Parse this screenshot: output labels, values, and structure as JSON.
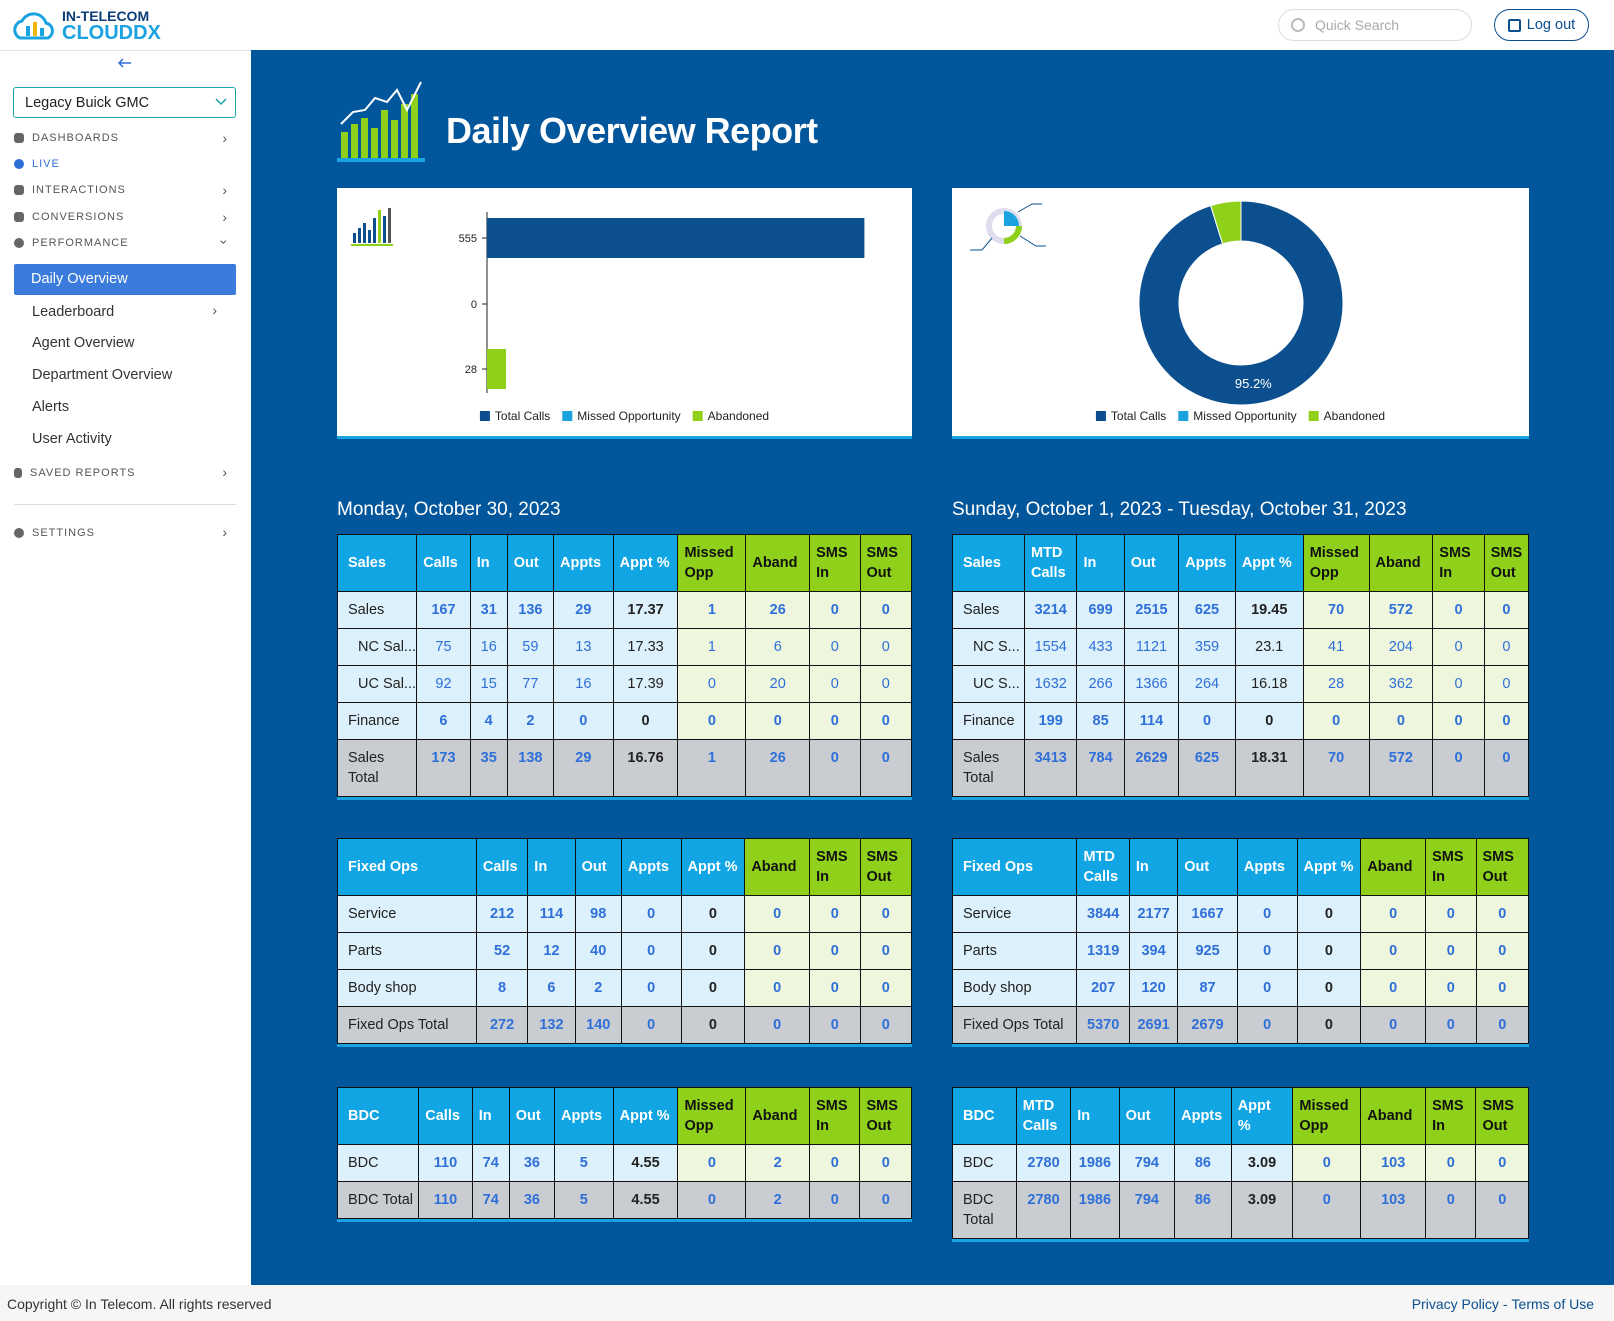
{
  "header": {
    "logo_top": "IN-TELECOM",
    "logo_bottom": "CLOUDDX",
    "search_placeholder": "Quick Search",
    "logout": "Log out"
  },
  "sidebar": {
    "dealer": "Legacy Buick GMC",
    "nav": [
      "DASHBOARDS",
      "LIVE",
      "INTERACTIONS",
      "CONVERSIONS",
      "PERFORMANCE"
    ],
    "performance_items": [
      "Daily Overview",
      "Leaderboard",
      "Agent Overview",
      "Department Overview",
      "Alerts",
      "User Activity"
    ],
    "saved_reports": "SAVED REPORTS",
    "settings": "SETTINGS"
  },
  "report": {
    "title": "Daily Overview Report"
  },
  "bar_chart": {
    "type": "bar",
    "horizontal": true,
    "xlim": [
      0,
      600
    ],
    "series": [
      {
        "name": "Total Calls",
        "color": "#0b4f8f",
        "values": [
          555
        ]
      },
      {
        "name": "Missed Opportunity",
        "color": "#1aa3e0",
        "values": [
          0
        ]
      },
      {
        "name": "Abandoned",
        "color": "#8fd11a",
        "values": [
          28
        ]
      }
    ]
  },
  "donut_chart": {
    "type": "pie",
    "donut": true,
    "categories": [
      "Total Calls",
      "Missed Opportunity",
      "Abandoned"
    ],
    "colors": [
      "#0b4f8f",
      "#1aa3e0",
      "#8fd11a"
    ],
    "values": [
      95.2,
      0,
      4.8
    ],
    "value_labels": [
      "95.2%",
      null,
      null
    ]
  },
  "sections": [
    {
      "title": "Monday, October 30, 2023",
      "tables": [
        {
          "columns": [
            "Sales",
            "Calls",
            "In",
            "Out",
            "Appts",
            "Appt %",
            "Missed Opp",
            "Aband",
            "SMS In",
            "SMS Out"
          ],
          "rows": [
            [
              "Sales",
              167,
              31,
              136,
              29,
              17.37,
              1,
              26,
              0,
              0
            ],
            [
              "NC Sal...",
              75,
              16,
              59,
              13,
              17.33,
              1,
              6,
              0,
              0
            ],
            [
              "UC Sal...",
              92,
              15,
              77,
              16,
              17.39,
              0,
              20,
              0,
              0
            ],
            [
              "Finance",
              6,
              4,
              2,
              0,
              0,
              0,
              0,
              0,
              0
            ],
            [
              "Sales Total",
              173,
              35,
              138,
              29,
              16.76,
              1,
              26,
              0,
              0
            ]
          ]
        },
        {
          "columns": [
            "Fixed Ops",
            "Calls",
            "In",
            "Out",
            "Appts",
            "Appt %",
            "Aband",
            "SMS In",
            "SMS Out"
          ],
          "rows": [
            [
              "Service",
              212,
              114,
              98,
              0,
              0,
              0,
              0,
              0
            ],
            [
              "Parts",
              52,
              12,
              40,
              0,
              0,
              0,
              0,
              0
            ],
            [
              "Body shop",
              8,
              6,
              2,
              0,
              0,
              0,
              0,
              0
            ],
            [
              "Fixed Ops Total",
              272,
              132,
              140,
              0,
              0,
              0,
              0,
              0
            ]
          ]
        },
        {
          "columns": [
            "BDC",
            "Calls",
            "In",
            "Out",
            "Appts",
            "Appt %",
            "Missed Opp",
            "Aband",
            "SMS In",
            "SMS Out"
          ],
          "rows": [
            [
              "BDC",
              110,
              74,
              36,
              5,
              4.55,
              0,
              2,
              0,
              0
            ],
            [
              "BDC Total",
              110,
              74,
              36,
              5,
              4.55,
              0,
              2,
              0,
              0
            ]
          ]
        }
      ]
    },
    {
      "title": "Sunday, October 1, 2023 - Tuesday, October 31, 2023",
      "tables": [
        {
          "columns": [
            "Sales",
            "MTD Calls",
            "In",
            "Out",
            "Appts",
            "Appt %",
            "Missed Opp",
            "Aband",
            "SMS In",
            "SMS Out"
          ],
          "rows": [
            [
              "Sales",
              3214,
              699,
              2515,
              625,
              19.45,
              70,
              572,
              0,
              0
            ],
            [
              "NC S...",
              1554,
              433,
              1121,
              359,
              23.1,
              41,
              204,
              0,
              0
            ],
            [
              "UC S...",
              1632,
              266,
              1366,
              264,
              16.18,
              28,
              362,
              0,
              0
            ],
            [
              "Finance",
              199,
              85,
              114,
              0,
              0,
              0,
              0,
              0,
              0
            ],
            [
              "Sales Total",
              3413,
              784,
              2629,
              625,
              18.31,
              70,
              572,
              0,
              0
            ]
          ]
        },
        {
          "columns": [
            "Fixed Ops",
            "MTD Calls",
            "In",
            "Out",
            "Appts",
            "Appt %",
            "Aband",
            "SMS In",
            "SMS Out"
          ],
          "rows": [
            [
              "Service",
              3844,
              2177,
              1667,
              0,
              0,
              0,
              0,
              0
            ],
            [
              "Parts",
              1319,
              394,
              925,
              0,
              0,
              0,
              0,
              0
            ],
            [
              "Body shop",
              207,
              120,
              87,
              0,
              0,
              0,
              0,
              0
            ],
            [
              "Fixed Ops Total",
              5370,
              2691,
              2679,
              0,
              0,
              0,
              0,
              0
            ]
          ]
        },
        {
          "columns": [
            "BDC",
            "MTD Calls",
            "In",
            "Out",
            "Appts",
            "Appt %",
            "Missed Opp",
            "Aband",
            "SMS In",
            "SMS Out"
          ],
          "rows": [
            [
              "BDC",
              2780,
              1986,
              794,
              86,
              3.09,
              0,
              103,
              0,
              0
            ],
            [
              "BDC Total",
              2780,
              1986,
              794,
              86,
              3.09,
              0,
              103,
              0,
              0
            ]
          ]
        }
      ]
    }
  ],
  "footer": {
    "copyright": "Copyright © In Telecom. All rights reserved",
    "privacy": "Privacy Policy",
    "separator": "-",
    "terms": "Terms of Use"
  }
}
